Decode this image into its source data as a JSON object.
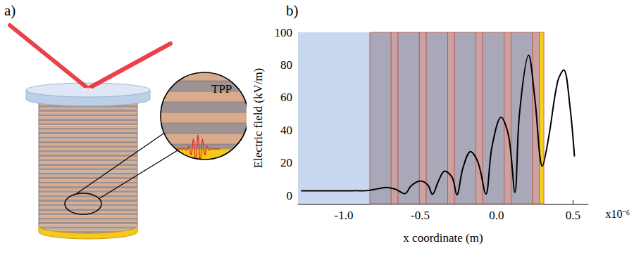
{
  "diagram": {
    "label": "a)",
    "inset_label": "TPP"
  },
  "chart_data": {
    "label": "b)",
    "type": "line",
    "x_label": "x coordinate (m)",
    "y_label": "Electric field (kV/m)",
    "x_multiplier": "x10⁻⁶",
    "color": "#000000",
    "x": [
      -1.28,
      -0.95,
      -0.85,
      -0.78,
      -0.72,
      -0.66,
      -0.6,
      -0.56,
      -0.5,
      -0.45,
      -0.42,
      -0.38,
      -0.34,
      -0.29,
      -0.26,
      -0.22,
      -0.17,
      -0.12,
      -0.07,
      -0.03,
      0.03,
      0.08,
      0.12,
      0.15,
      0.21,
      0.25,
      0.3,
      0.34,
      0.4,
      0.44,
      0.48,
      0.51
    ],
    "values": [
      3,
      3,
      3.1,
      4.2,
      5,
      3.8,
      1.2,
      6,
      9,
      6.5,
      0.8,
      9,
      15,
      11,
      0.5,
      17,
      27,
      20,
      1,
      30,
      48,
      36,
      2,
      50,
      86,
      60,
      18,
      35,
      70,
      77,
      55,
      24
    ],
    "xlim": [
      -1.3,
      0.6
    ],
    "xticks": [
      {
        "value": -1,
        "label": "-1.0"
      },
      -0.5,
      {
        "value": 0,
        "label": "0.0"
      },
      0.5
    ],
    "ylim": [
      -5,
      100
    ],
    "yticks": [
      0,
      20,
      40,
      60,
      80,
      100
    ],
    "grid": false,
    "regions": [
      {
        "start": -1.3,
        "end": -0.83,
        "color": "#c9d8ee"
      },
      {
        "start": -0.83,
        "end": -0.69,
        "color": "#a9a8b8"
      },
      {
        "start": -0.69,
        "end": -0.645,
        "color": "#caa2a2"
      },
      {
        "start": -0.645,
        "end": -0.505,
        "color": "#a9a8b8"
      },
      {
        "start": -0.505,
        "end": -0.46,
        "color": "#caa2a2"
      },
      {
        "start": -0.46,
        "end": -0.32,
        "color": "#a9a8b8"
      },
      {
        "start": -0.32,
        "end": -0.275,
        "color": "#caa2a2"
      },
      {
        "start": -0.275,
        "end": -0.135,
        "color": "#a9a8b8"
      },
      {
        "start": -0.135,
        "end": -0.09,
        "color": "#caa2a2"
      },
      {
        "start": -0.09,
        "end": 0.05,
        "color": "#a9a8b8"
      },
      {
        "start": 0.05,
        "end": 0.095,
        "color": "#caa2a2"
      },
      {
        "start": 0.095,
        "end": 0.235,
        "color": "#a9a8b8"
      },
      {
        "start": 0.235,
        "end": 0.28,
        "color": "#caa2a2"
      },
      {
        "start": 0.28,
        "end": 0.31,
        "color": "#f7cf1d"
      }
    ]
  }
}
